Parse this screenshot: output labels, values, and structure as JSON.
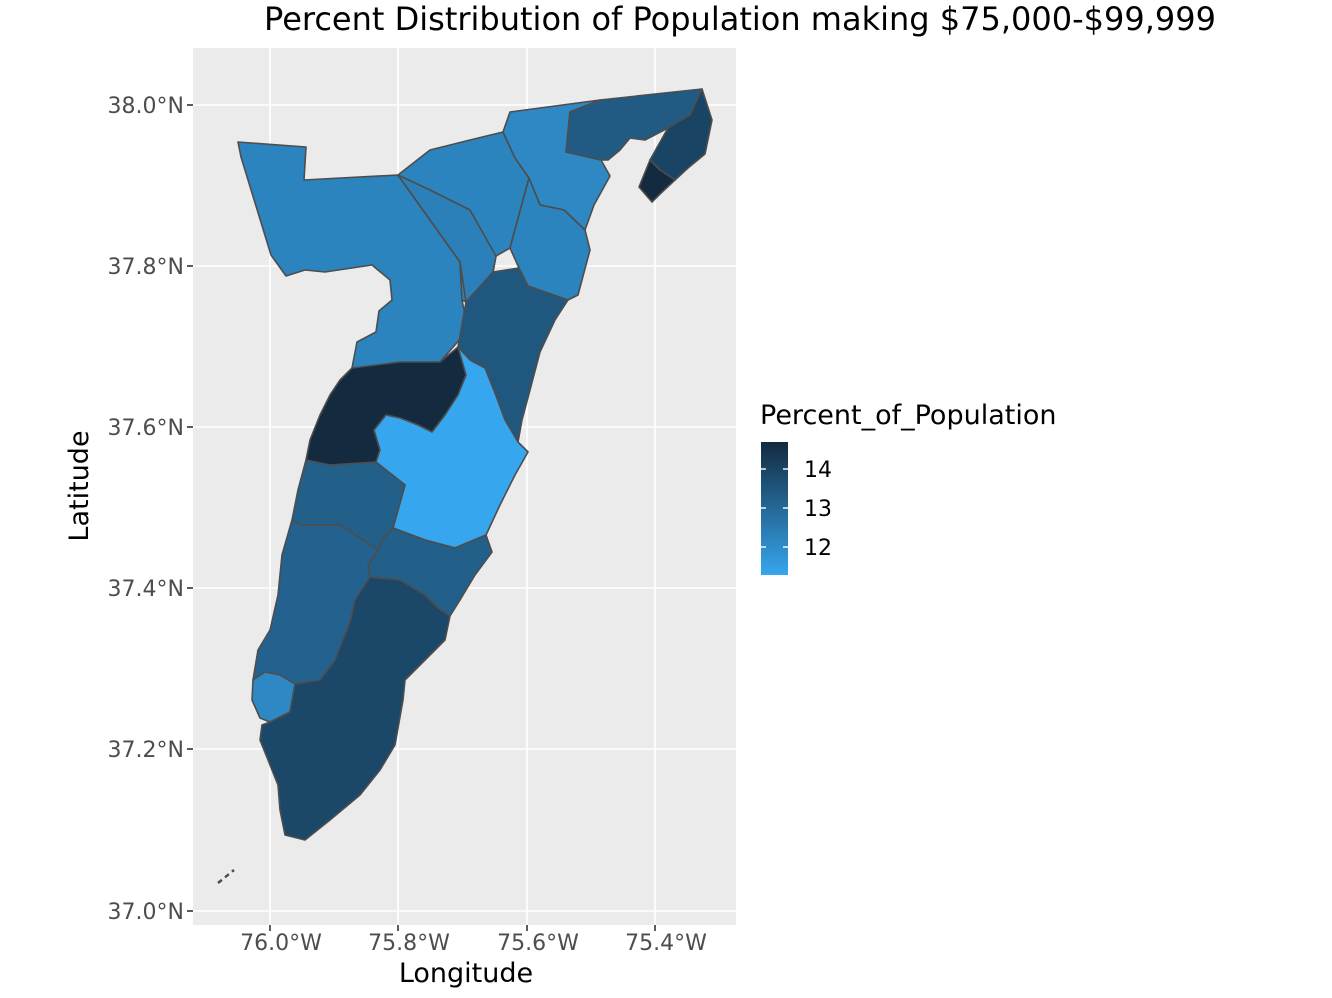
{
  "chart_data": {
    "type": "choropleth",
    "title": "Percent Distribution of Population making $75,000-$99,999",
    "xlabel": "Longitude",
    "ylabel": "Latitude",
    "x_ticks": [
      "76.0°W",
      "75.8°W",
      "75.6°W",
      "75.4°W"
    ],
    "y_ticks": [
      "37.0°N",
      "37.2°N",
      "37.4°N",
      "37.6°N",
      "37.8°N",
      "38.0°N"
    ],
    "xlim": [
      -76.12,
      -75.28
    ],
    "ylim": [
      36.99,
      38.07
    ],
    "grid": true,
    "legend": {
      "title": "Percent_of_Population",
      "placement": "right",
      "ticks": [
        "14",
        "13",
        "12"
      ],
      "range": [
        11.3,
        14.6
      ],
      "low_color": "#36a6ee",
      "high_color": "#132a3f"
    },
    "regions": [
      {
        "name": "northwest",
        "value": 12.2
      },
      {
        "name": "north-central",
        "value": 12.2
      },
      {
        "name": "northeast-strip",
        "value": 12.1
      },
      {
        "name": "north-inner",
        "value": 12.3
      },
      {
        "name": "northeast-inner",
        "value": 12.2
      },
      {
        "name": "top-right",
        "value": 13.3
      },
      {
        "name": "far-northeast",
        "value": 13.9
      },
      {
        "name": "tip-northeast",
        "value": 14.6
      },
      {
        "name": "east-coast",
        "value": 13.4
      },
      {
        "name": "central-dark",
        "value": 14.6
      },
      {
        "name": "central-light",
        "value": 11.3
      },
      {
        "name": "mid-west",
        "value": 13.2
      },
      {
        "name": "mid-east",
        "value": 13.2
      },
      {
        "name": "south-west",
        "value": 13.1
      },
      {
        "name": "south-small",
        "value": 12.1
      },
      {
        "name": "south",
        "value": 13.8
      }
    ]
  }
}
